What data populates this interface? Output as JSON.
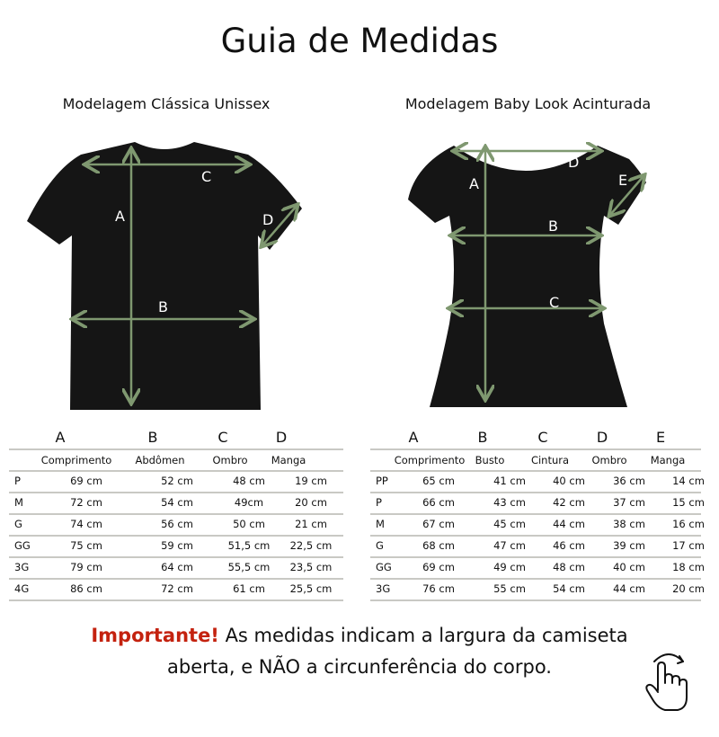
{
  "title": "Guia de Medidas",
  "accent_color": "#c4220f",
  "arrow_color": "#7f9870",
  "classic": {
    "subtitle": "Modelagem Clássica Unissex",
    "diagram_labels": {
      "A": "A",
      "B": "B",
      "C": "C",
      "D": "D"
    },
    "letters": [
      "A",
      "B",
      "C",
      "D"
    ],
    "headers": [
      "Comprimento",
      "Abdômen",
      "Ombro",
      "Manga"
    ],
    "rows": [
      [
        "P",
        "69 cm",
        "52 cm",
        "48 cm",
        "19 cm"
      ],
      [
        "M",
        "72 cm",
        "54 cm",
        "49cm",
        "20 cm"
      ],
      [
        "G",
        "74 cm",
        "56 cm",
        "50 cm",
        "21 cm"
      ],
      [
        "GG",
        "75 cm",
        "59 cm",
        "51,5 cm",
        "22,5 cm"
      ],
      [
        "3G",
        "79 cm",
        "64 cm",
        "55,5 cm",
        "23,5 cm"
      ],
      [
        "4G",
        "86 cm",
        "72 cm",
        "61 cm",
        "25,5 cm"
      ]
    ]
  },
  "babylook": {
    "subtitle": "Modelagem Baby Look Acinturada",
    "diagram_labels": {
      "A": "A",
      "B": "B",
      "C": "C",
      "D": "D",
      "E": "E"
    },
    "letters": [
      "A",
      "B",
      "C",
      "D",
      "E"
    ],
    "headers": [
      "Comprimento",
      "Busto",
      "Cintura",
      "Ombro",
      "Manga"
    ],
    "rows": [
      [
        "PP",
        "65 cm",
        "41 cm",
        "40 cm",
        "36 cm",
        "14 cm"
      ],
      [
        "P",
        "66 cm",
        "43 cm",
        "42 cm",
        "37 cm",
        "15 cm"
      ],
      [
        "M",
        "67 cm",
        "45 cm",
        "44 cm",
        "38 cm",
        "16 cm"
      ],
      [
        "G",
        "68 cm",
        "47 cm",
        "46 cm",
        "39 cm",
        "17 cm"
      ],
      [
        "GG",
        "69 cm",
        "49 cm",
        "48 cm",
        "40 cm",
        "18 cm"
      ],
      [
        "3G",
        "76 cm",
        "55 cm",
        "54 cm",
        "44 cm",
        "20 cm"
      ]
    ]
  },
  "note": {
    "emphasis": "Importante!",
    "line1": " As medidas indicam a largura da camiseta",
    "line2": "aberta, e NÃO a circunferência do corpo."
  },
  "icons": {
    "swipe": "hand-swipe-icon"
  }
}
